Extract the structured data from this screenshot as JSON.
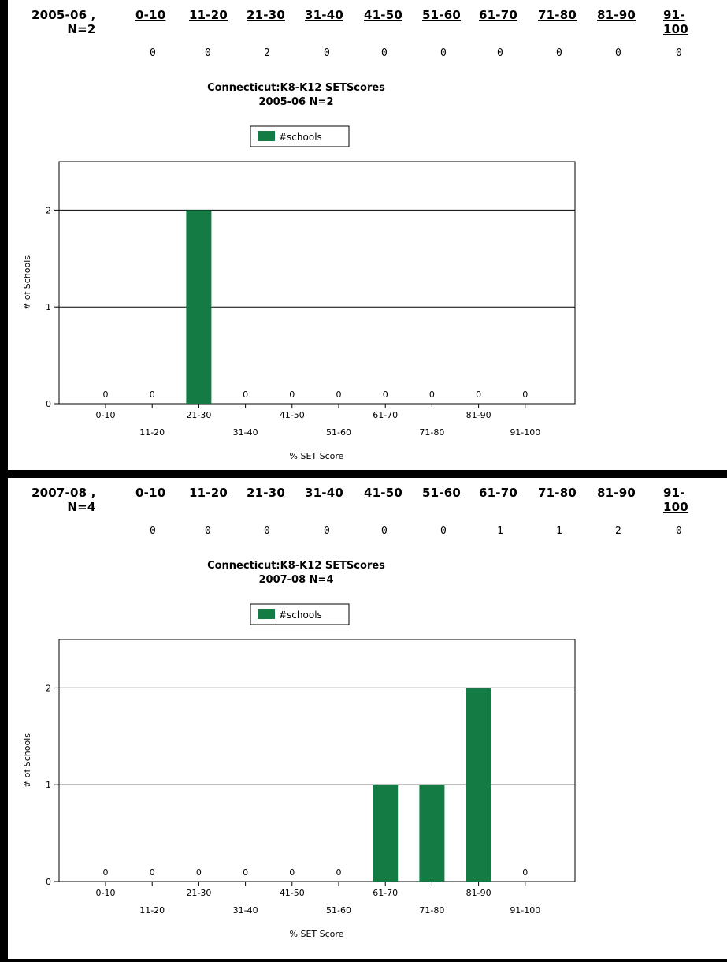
{
  "bins": [
    "0-10",
    "11-20",
    "21-30",
    "31-40",
    "41-50",
    "51-60",
    "61-70",
    "71-80",
    "81-90",
    "91-100"
  ],
  "legend_label": "#schools",
  "bar_color": "#137b43",
  "axis_ylabel": "# of Schools",
  "axis_xlabel": "% SET Score",
  "panels": [
    {
      "year_label": "2005-06 ,",
      "n_label": "N=2",
      "counts": [
        "0",
        "0",
        "2",
        "0",
        "0",
        "0",
        "0",
        "0",
        "0",
        "0"
      ],
      "chart_title_line1": "Connecticut:K8-K12 SETScores",
      "chart_title_line2": "2005-06  N=2"
    },
    {
      "year_label": "2007-08 ,",
      "n_label": "N=4",
      "counts": [
        "0",
        "0",
        "0",
        "0",
        "0",
        "0",
        "1",
        "1",
        "2",
        "0"
      ],
      "chart_title_line1": "Connecticut:K8-K12 SETScores",
      "chart_title_line2": "2007-08  N=4"
    }
  ],
  "chart_data": [
    {
      "type": "bar",
      "title": "Connecticut:K8-K12 SETScores 2005-06  N=2",
      "categories": [
        "0-10",
        "11-20",
        "21-30",
        "31-40",
        "41-50",
        "51-60",
        "61-70",
        "71-80",
        "81-90",
        "91-100"
      ],
      "series": [
        {
          "name": "#schools",
          "values": [
            0,
            0,
            2,
            0,
            0,
            0,
            0,
            0,
            0,
            0
          ]
        }
      ],
      "xlabel": "% SET Score",
      "ylabel": "# of Schools",
      "yticks": [
        0,
        1,
        2
      ],
      "ylim": [
        0,
        2.5
      ],
      "grid": true,
      "legend": "top-center"
    },
    {
      "type": "bar",
      "title": "Connecticut:K8-K12 SETScores 2007-08  N=4",
      "categories": [
        "0-10",
        "11-20",
        "21-30",
        "31-40",
        "41-50",
        "51-60",
        "61-70",
        "71-80",
        "81-90",
        "91-100"
      ],
      "series": [
        {
          "name": "#schools",
          "values": [
            0,
            0,
            0,
            0,
            0,
            0,
            1,
            1,
            2,
            0
          ]
        }
      ],
      "xlabel": "% SET Score",
      "ylabel": "# of Schools",
      "yticks": [
        0,
        1,
        2
      ],
      "ylim": [
        0,
        2.5
      ],
      "grid": true,
      "legend": "top-center"
    }
  ]
}
